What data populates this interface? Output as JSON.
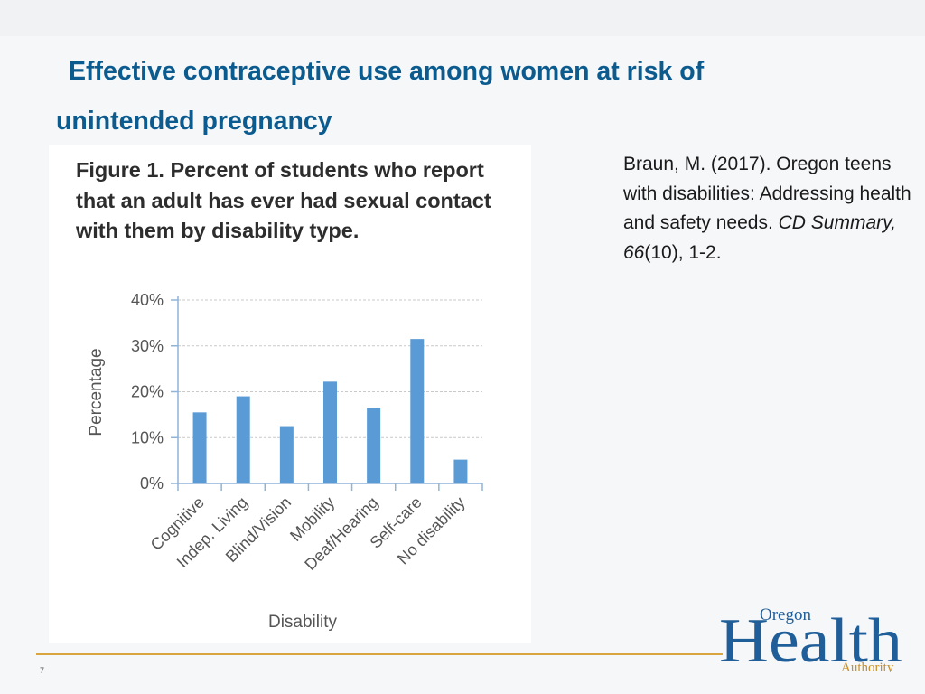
{
  "slide": {
    "title_line1": "Effective contraceptive use among women at risk of",
    "title_line2": "unintended pregnancy",
    "page_number": "7"
  },
  "citation": {
    "part1": "Braun, M. (2017). Oregon teens with disabilities: Addressing health and safety needs. ",
    "journal": "CD Summary, 66",
    "part2": "(10), 1-2."
  },
  "logo": {
    "line1": "Oregon",
    "line2": "Health",
    "line3": "Authority"
  },
  "colors": {
    "title": "#0c5b8f",
    "bar": "#5b9bd5",
    "footer_line": "#d9a53f",
    "logo_blue": "#1f5e99",
    "logo_gold": "#d9a53f"
  },
  "chart_data": {
    "type": "bar",
    "title": "Figure 1. Percent of students who report that an adult has ever had sexual contact with them by disability type.",
    "categories": [
      "Cognitive",
      "Indep. Living",
      "Blind/Vision",
      "Mobility",
      "Deaf/Hearing",
      "Self-care",
      "No disability"
    ],
    "values": [
      15.5,
      19.0,
      12.5,
      22.2,
      16.5,
      31.5,
      5.2
    ],
    "xlabel": "Disability",
    "ylabel": "Percentage",
    "ylim": [
      0,
      40
    ],
    "yticks": [
      "0%",
      "10%",
      "20%",
      "30%",
      "40%"
    ],
    "grid": true
  }
}
